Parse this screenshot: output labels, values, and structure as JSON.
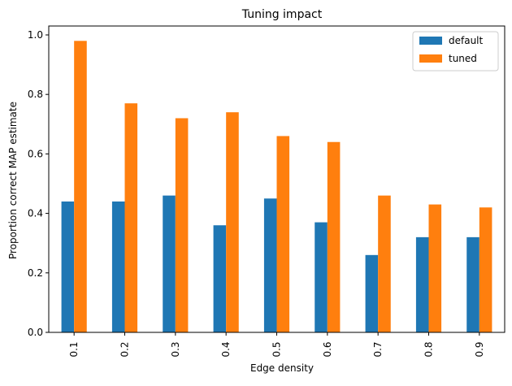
{
  "chart_data": {
    "type": "bar",
    "title": "Tuning impact",
    "xlabel": "Edge density",
    "ylabel": "Proportion correct MAP estimate",
    "categories": [
      "0.1",
      "0.2",
      "0.3",
      "0.4",
      "0.5",
      "0.6",
      "0.7",
      "0.8",
      "0.9"
    ],
    "series": [
      {
        "name": "default",
        "color": "#1f77b4",
        "values": [
          0.44,
          0.44,
          0.46,
          0.36,
          0.45,
          0.37,
          0.26,
          0.32,
          0.32
        ]
      },
      {
        "name": "tuned",
        "color": "#ff7f0e",
        "values": [
          0.98,
          0.77,
          0.72,
          0.74,
          0.66,
          0.64,
          0.46,
          0.43,
          0.42
        ]
      }
    ],
    "ylim": [
      0,
      1.03
    ],
    "yticks": [
      "0.0",
      "0.2",
      "0.4",
      "0.6",
      "0.8",
      "1.0"
    ],
    "grid": false,
    "legend_position": "top-right"
  }
}
